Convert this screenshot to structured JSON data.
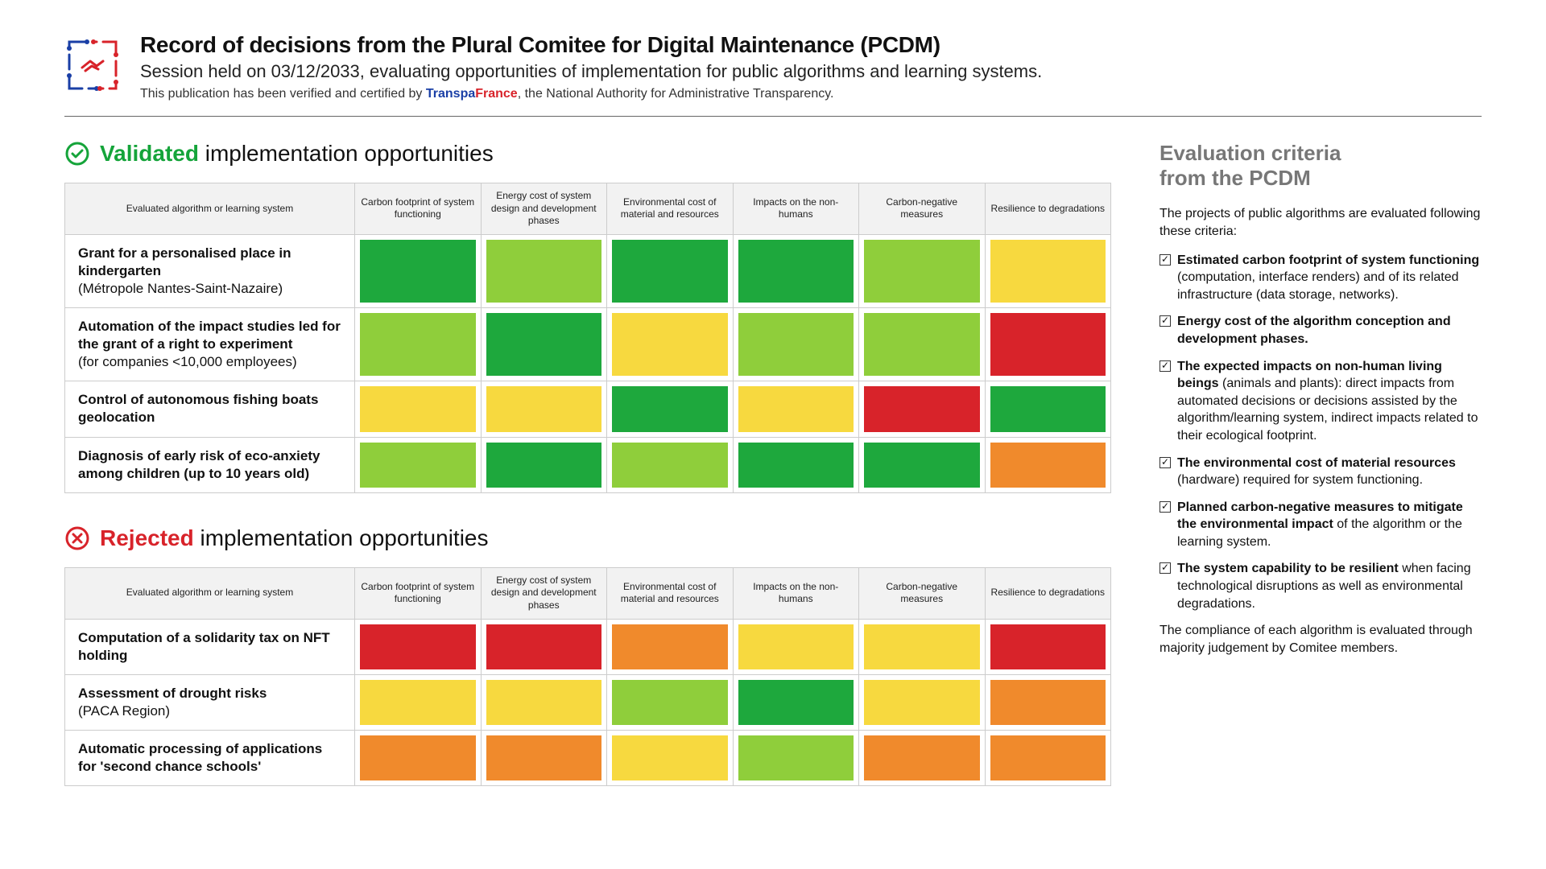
{
  "colors": {
    "dark_green": "#1ea83d",
    "light_green": "#8fce3b",
    "yellow": "#f7d93f",
    "orange": "#f08a2c",
    "red": "#d8232a",
    "validated_text": "#15a43a"
  },
  "header": {
    "title": "Record of decisions from the Plural Comitee for Digital Maintenance (PCDM)",
    "subtitle": "Session held on 03/12/2033, evaluating opportunities of implementation for public algorithms and learning systems.",
    "cert_prefix": "This publication has been verified and certified by ",
    "cert_brand_a": "Transpa",
    "cert_brand_b": "France",
    "cert_suffix": ", the National Authority for Administrative Transparency."
  },
  "columns": [
    "Evaluated algorithm or learning system",
    "Carbon footprint of system functioning",
    "Energy cost of system design and development phases",
    "Environmental cost of material and resources",
    "Impacts on the non-humans",
    "Carbon-negative measures",
    "Resilience to degradations"
  ],
  "validated": {
    "heading_strong": "Validated",
    "heading_rest": " implementation opportunities",
    "rows": [
      {
        "title": "Grant for a personalised place in kindergarten",
        "sub": "(Métropole Nantes-Saint-Nazaire)",
        "cells": [
          "dark_green",
          "light_green",
          "dark_green",
          "dark_green",
          "light_green",
          "yellow"
        ]
      },
      {
        "title": "Automation of the impact studies led for the grant of a right to experiment",
        "sub": "(for companies <10,000 employees)",
        "cells": [
          "light_green",
          "dark_green",
          "yellow",
          "light_green",
          "light_green",
          "red"
        ]
      },
      {
        "title": "Control of autonomous fishing boats geolocation",
        "sub": "",
        "cells": [
          "yellow",
          "yellow",
          "dark_green",
          "yellow",
          "red",
          "dark_green"
        ]
      },
      {
        "title": "Diagnosis of early risk of eco-anxiety among children (up to 10 years old)",
        "sub": "",
        "cells": [
          "light_green",
          "dark_green",
          "light_green",
          "dark_green",
          "dark_green",
          "orange"
        ]
      }
    ]
  },
  "rejected": {
    "heading_strong": "Rejected",
    "heading_rest": " implementation opportunities",
    "rows": [
      {
        "title": "Computation of a solidarity tax on NFT holding",
        "sub": "",
        "cells": [
          "red",
          "red",
          "orange",
          "yellow",
          "yellow",
          "red"
        ]
      },
      {
        "title": "Assessment of drought risks",
        "sub": "(PACA Region)",
        "cells": [
          "yellow",
          "yellow",
          "light_green",
          "dark_green",
          "yellow",
          "orange"
        ]
      },
      {
        "title": "Automatic processing of applications for 'second chance schools'",
        "sub": "",
        "cells": [
          "orange",
          "orange",
          "yellow",
          "light_green",
          "orange",
          "orange"
        ]
      }
    ]
  },
  "sidebar": {
    "heading_l1": "Evaluation criteria",
    "heading_l2": "from the PCDM",
    "intro": "The projects of public algorithms are evaluated following these criteria:",
    "items": [
      {
        "bold": "Estimated carbon footprint of system functioning",
        "rest": " (computation, interface renders) and of its related infrastructure (data storage, networks)."
      },
      {
        "bold": "Energy cost of the algorithm conception and development phases.",
        "rest": ""
      },
      {
        "bold": "The expected impacts on non-human living beings",
        "rest": " (animals and plants): direct impacts from automated decisions or decisions assisted by the algorithm/learning system, indirect impacts related to their ecological footprint."
      },
      {
        "bold": "The environmental cost of material resources",
        "rest": " (hardware) required for system functioning."
      },
      {
        "bold": "Planned carbon-negative measures to mitigate the environmental impact",
        "rest": " of the algorithm or the learning system."
      },
      {
        "bold": "The system capability to be resilient",
        "rest": " when facing technological disruptions as well as environmental degradations."
      }
    ],
    "outro": "The compliance of each algorithm is evaluated through majority judgement by Comitee members."
  }
}
